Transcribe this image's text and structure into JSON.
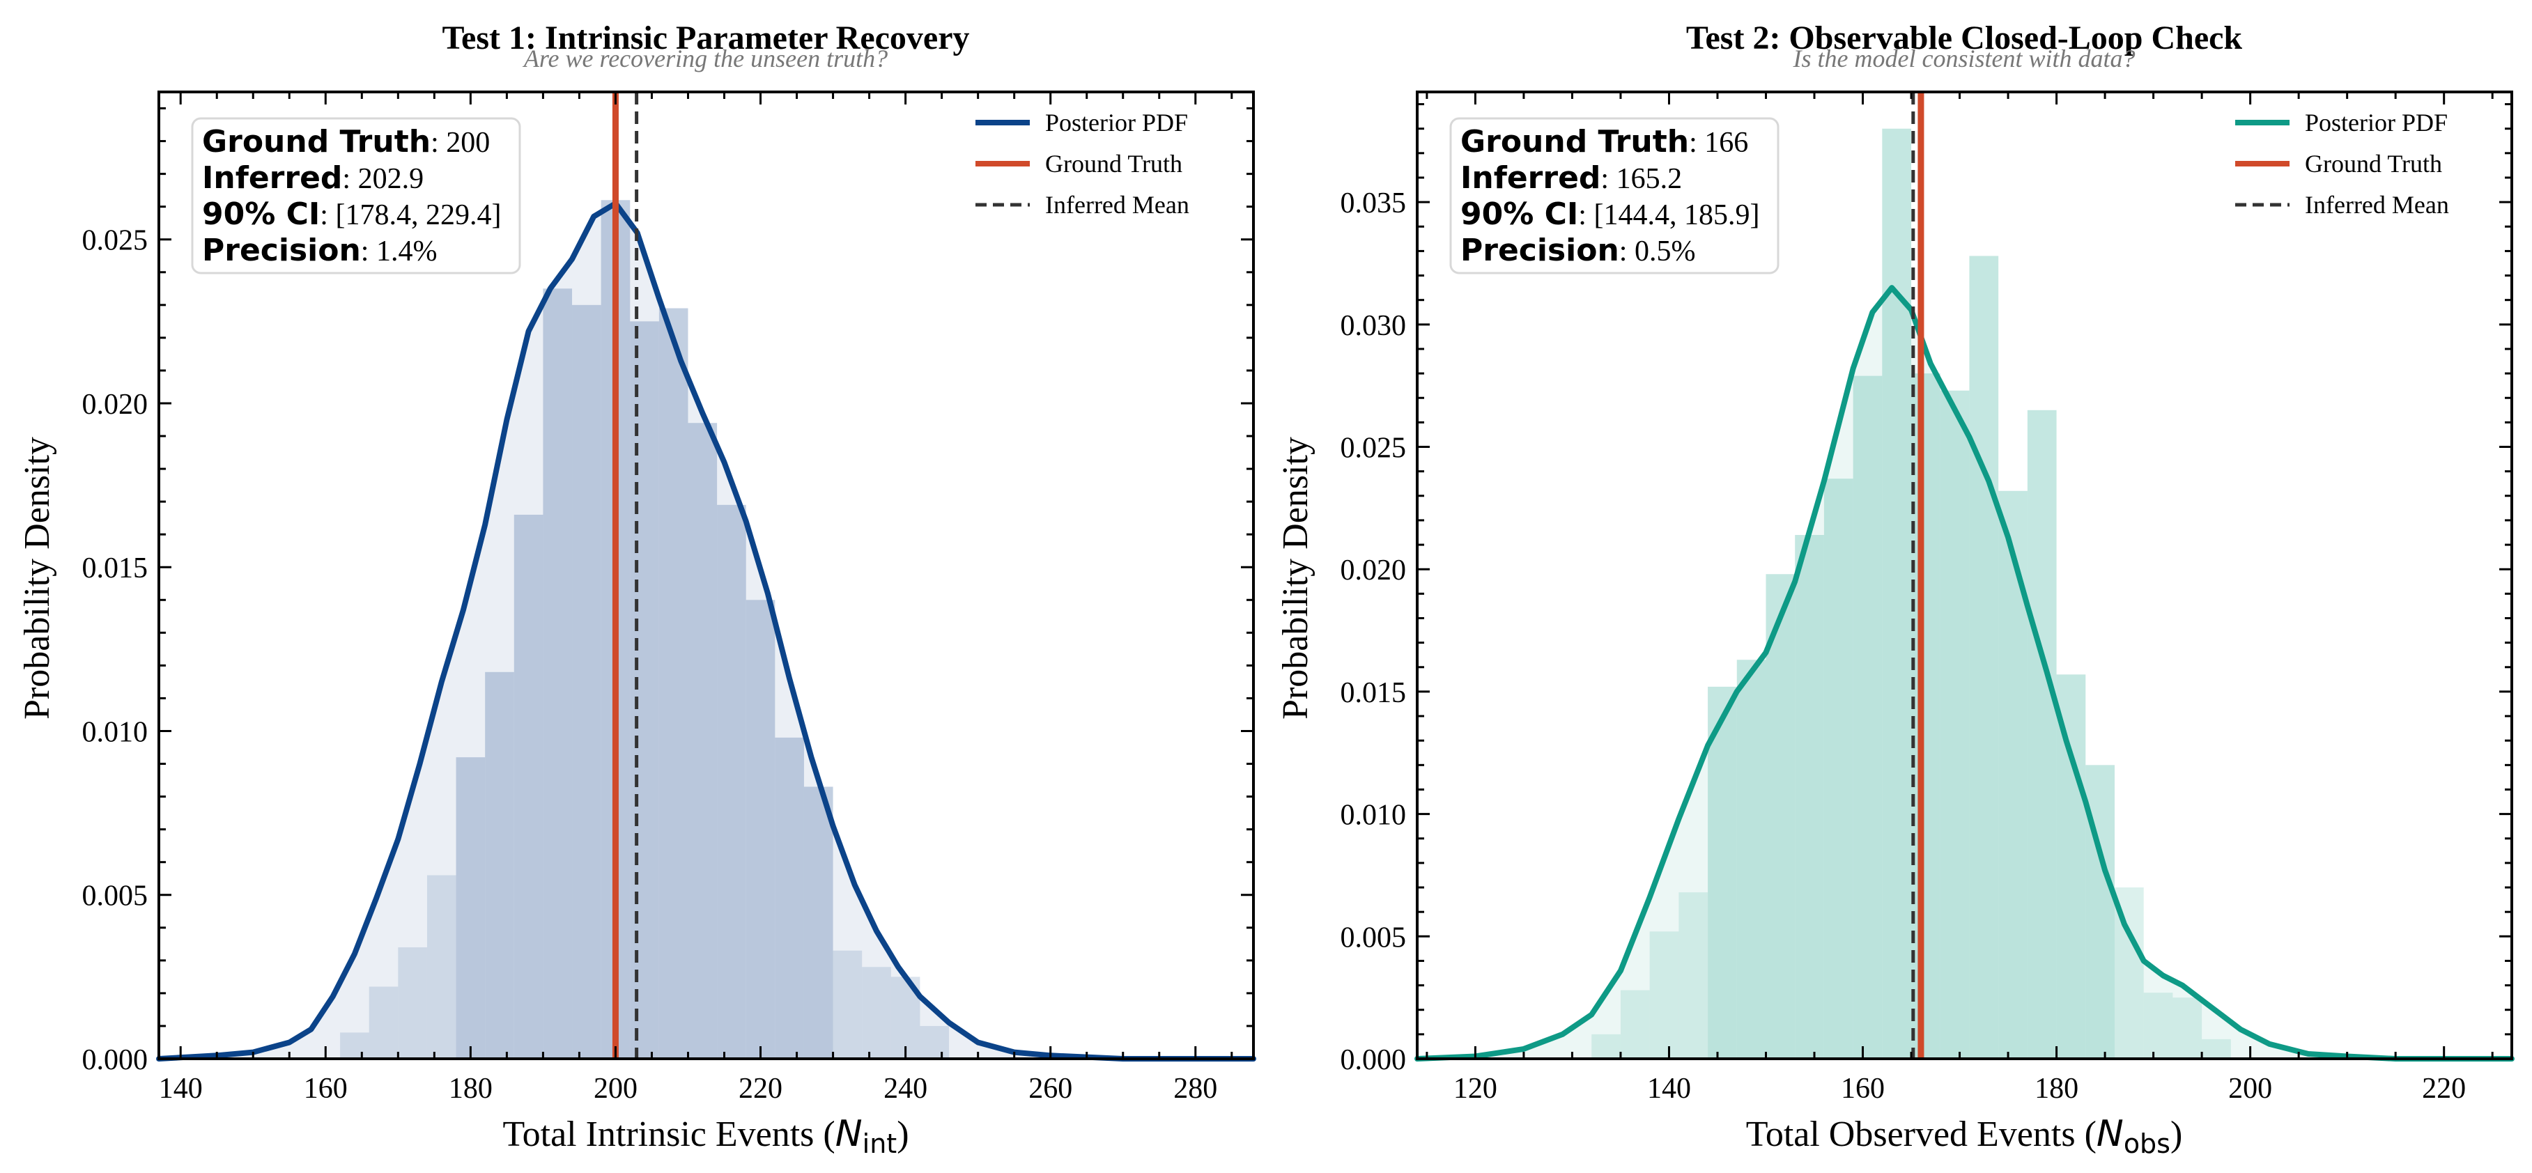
{
  "chart_data": [
    {
      "type": "histogram+line",
      "title": "Test 1: Intrinsic Parameter Recovery",
      "subtitle": "Are we recovering the unseen truth?",
      "xlabel_text": "Total Intrinsic Events (",
      "xlabel_math": "N",
      "xlabel_sub": "int",
      "xlabel_close": ")",
      "ylabel": "Probability Density",
      "xlim": [
        137,
        288
      ],
      "ylim": [
        0,
        0.0295
      ],
      "xticks": [
        140,
        160,
        180,
        200,
        220,
        240,
        260,
        280
      ],
      "yticks": [
        0.0,
        0.005,
        0.01,
        0.015,
        0.02,
        0.025
      ],
      "ytick_labels": [
        "0.000",
        "0.005",
        "0.010",
        "0.015",
        "0.020",
        "0.025"
      ],
      "colors": {
        "line": "#0b4389",
        "fill": "#8fa8c8",
        "truth": "#d04a2a",
        "mean": "#333333"
      },
      "ground_truth_value": 200,
      "inferred_mean_value": 202.9,
      "ci_low": 178.4,
      "ci_high": 229.4,
      "stats": [
        {
          "key": "Ground Truth",
          "value": ": 200"
        },
        {
          "key": "Inferred",
          "value": ": 202.9"
        },
        {
          "key": "90% CI",
          "value": ": [178.4, 229.4]"
        },
        {
          "key": "Precision",
          "value": ": 1.4%"
        }
      ],
      "legend": [
        "Posterior PDF",
        "Ground Truth",
        "Inferred Mean"
      ],
      "hist": {
        "edges": [
          162,
          166,
          170,
          174,
          178,
          182,
          186,
          190,
          194,
          198,
          202,
          206,
          210,
          214,
          218,
          222,
          226,
          230,
          234,
          238,
          242,
          246
        ],
        "values": [
          0.0008,
          0.0022,
          0.0034,
          0.0056,
          0.0092,
          0.0118,
          0.0166,
          0.0235,
          0.023,
          0.0262,
          0.0225,
          0.0229,
          0.0194,
          0.0169,
          0.014,
          0.0098,
          0.0083,
          0.0033,
          0.0028,
          0.0025,
          0.001
        ]
      },
      "kde": {
        "x": [
          137,
          145,
          150,
          155,
          158,
          161,
          164,
          167,
          170,
          173,
          176,
          179,
          182,
          185,
          188,
          191,
          194,
          197,
          200,
          203,
          206,
          209,
          212,
          215,
          218,
          221,
          224,
          227,
          230,
          233,
          236,
          239,
          242,
          246,
          250,
          255,
          260,
          270,
          288
        ],
        "y": [
          0.0,
          0.0001,
          0.0002,
          0.0005,
          0.0009,
          0.0019,
          0.0032,
          0.0049,
          0.0067,
          0.009,
          0.0115,
          0.0137,
          0.0163,
          0.0195,
          0.0222,
          0.0235,
          0.0244,
          0.0257,
          0.0261,
          0.0252,
          0.0232,
          0.0213,
          0.0197,
          0.0182,
          0.0164,
          0.0142,
          0.0116,
          0.0092,
          0.0071,
          0.0053,
          0.0039,
          0.0028,
          0.0019,
          0.0011,
          0.0005,
          0.0002,
          0.0001,
          0.0,
          0.0
        ]
      }
    },
    {
      "type": "histogram+line",
      "title": "Test 2: Observable Closed-Loop Check",
      "subtitle": "Is the model consistent with data?",
      "xlabel_text": "Total Observed Events (",
      "xlabel_math": "N",
      "xlabel_sub": "obs",
      "xlabel_close": ")",
      "ylabel": "Probability Density",
      "xlim": [
        114,
        227
      ],
      "ylim": [
        0,
        0.0395
      ],
      "xticks": [
        120,
        140,
        160,
        180,
        200,
        220
      ],
      "yticks": [
        0.0,
        0.005,
        0.01,
        0.015,
        0.02,
        0.025,
        0.03,
        0.035
      ],
      "ytick_labels": [
        "0.000",
        "0.005",
        "0.010",
        "0.015",
        "0.020",
        "0.025",
        "0.030",
        "0.035"
      ],
      "colors": {
        "line": "#0e9a86",
        "fill": "#93d3c8",
        "truth": "#d04a2a",
        "mean": "#333333"
      },
      "ground_truth_value": 166,
      "inferred_mean_value": 165.2,
      "ci_low": 144.4,
      "ci_high": 185.9,
      "stats": [
        {
          "key": "Ground Truth",
          "value": ": 166"
        },
        {
          "key": "Inferred",
          "value": ": 165.2"
        },
        {
          "key": "90% CI",
          "value": ": [144.4, 185.9]"
        },
        {
          "key": "Precision",
          "value": ": 0.5%"
        }
      ],
      "legend": [
        "Posterior PDF",
        "Ground Truth",
        "Inferred Mean"
      ],
      "hist": {
        "edges": [
          132,
          135,
          138,
          141,
          144,
          147,
          150,
          153,
          156,
          159,
          162,
          165,
          168,
          171,
          174,
          177,
          180,
          183,
          186,
          189,
          192,
          195,
          198
        ],
        "values": [
          0.001,
          0.0028,
          0.0052,
          0.0068,
          0.0152,
          0.0163,
          0.0198,
          0.0214,
          0.0237,
          0.0279,
          0.038,
          0.028,
          0.0273,
          0.0328,
          0.0232,
          0.0265,
          0.0157,
          0.012,
          0.007,
          0.0027,
          0.0025,
          0.0008
        ]
      },
      "kde": {
        "x": [
          114,
          120,
          125,
          129,
          132,
          135,
          138,
          141,
          144,
          147,
          150,
          153,
          156,
          159,
          161,
          163,
          165,
          167,
          169,
          171,
          173,
          175,
          177,
          179,
          181,
          183,
          185,
          187,
          189,
          191,
          193,
          195,
          197,
          199,
          202,
          206,
          210,
          215,
          227
        ],
        "y": [
          0.0,
          0.0001,
          0.0004,
          0.001,
          0.0018,
          0.0036,
          0.0066,
          0.0098,
          0.0128,
          0.015,
          0.0166,
          0.0195,
          0.0236,
          0.0282,
          0.0305,
          0.0315,
          0.0306,
          0.0284,
          0.0269,
          0.0254,
          0.0236,
          0.0213,
          0.0185,
          0.0158,
          0.013,
          0.0105,
          0.0077,
          0.0055,
          0.004,
          0.0034,
          0.003,
          0.0024,
          0.0018,
          0.0012,
          0.0006,
          0.0002,
          0.0001,
          0.0,
          0.0
        ]
      }
    }
  ]
}
